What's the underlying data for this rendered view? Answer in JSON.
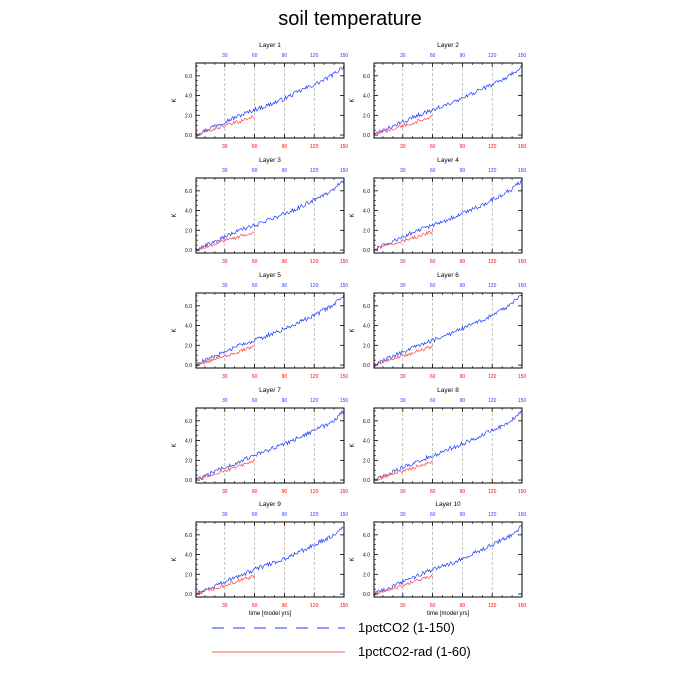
{
  "title": "soil temperature",
  "legend": {
    "items": [
      {
        "label": "1pctCO2 (1-150)",
        "color": "#1f3fff",
        "style": "dashed"
      },
      {
        "label": "1pctCO2-rad (1-60)",
        "color": "#ff5a5a",
        "style": "solid"
      }
    ]
  },
  "colors": {
    "series_main": "#1f3fff",
    "series_rad": "#ff4a4a",
    "bottom_ticks": "#ff0000",
    "top_ticks": "#1f3fff",
    "gridline": "#999999"
  },
  "chart_data": [
    {
      "type": "line",
      "title": "Layer 1",
      "ylabel": "K",
      "xlabel": "",
      "xlim": [
        1,
        150
      ],
      "ylim": [
        -0.3,
        7.3
      ],
      "yticks": [
        "0.0",
        "2.0",
        "4.0",
        "6.0"
      ],
      "xticks_top": [
        "30",
        "60",
        "90",
        "120",
        "150"
      ],
      "xticks_bottom": [
        "30",
        "60",
        "90",
        "120",
        "150"
      ],
      "series": [
        {
          "name": "1pctCO2 (1-150)",
          "x_range": [
            1,
            150
          ],
          "values": [
            0.0,
            0.5,
            1.0,
            1.4,
            1.8,
            2.2,
            2.6,
            2.9,
            3.3,
            3.7,
            4.2,
            4.7,
            5.1,
            5.6,
            6.2,
            7.0
          ]
        },
        {
          "name": "1pctCO2-rad (1-60)",
          "x_range": [
            1,
            60
          ],
          "values": [
            0.0,
            0.4,
            0.8,
            1.1,
            1.5,
            1.9
          ]
        }
      ]
    },
    {
      "type": "line",
      "title": "Layer 2",
      "ylabel": "K",
      "xlabel": "",
      "xlim": [
        1,
        150
      ],
      "ylim": [
        -0.3,
        7.3
      ],
      "yticks": [
        "0.0",
        "2.0",
        "4.0",
        "6.0"
      ],
      "xticks_top": [
        "30",
        "60",
        "90",
        "120",
        "150"
      ],
      "xticks_bottom": [
        "30",
        "60",
        "90",
        "120",
        "150"
      ],
      "series": [
        {
          "name": "1pctCO2 (1-150)",
          "x_range": [
            1,
            150
          ],
          "values": [
            0.0,
            0.5,
            0.9,
            1.4,
            1.8,
            2.2,
            2.6,
            2.9,
            3.3,
            3.7,
            4.2,
            4.7,
            5.1,
            5.6,
            6.2,
            7.0
          ]
        },
        {
          "name": "1pctCO2-rad (1-60)",
          "x_range": [
            1,
            60
          ],
          "values": [
            0.0,
            0.4,
            0.8,
            1.1,
            1.5,
            1.9
          ]
        }
      ]
    },
    {
      "type": "line",
      "title": "Layer 3",
      "ylabel": "K",
      "xlabel": "",
      "xlim": [
        1,
        150
      ],
      "ylim": [
        -0.3,
        7.3
      ],
      "yticks": [
        "0.0",
        "2.0",
        "4.0",
        "6.0"
      ],
      "xticks_top": [
        "30",
        "60",
        "90",
        "120",
        "150"
      ],
      "xticks_bottom": [
        "30",
        "60",
        "90",
        "120",
        "150"
      ],
      "series": [
        {
          "name": "1pctCO2 (1-150)",
          "x_range": [
            1,
            150
          ],
          "values": [
            0.0,
            0.5,
            0.9,
            1.4,
            1.8,
            2.2,
            2.5,
            2.9,
            3.3,
            3.7,
            4.1,
            4.6,
            5.1,
            5.6,
            6.2,
            7.1
          ]
        },
        {
          "name": "1pctCO2-rad (1-60)",
          "x_range": [
            1,
            60
          ],
          "values": [
            0.0,
            0.4,
            0.8,
            1.1,
            1.5,
            1.9
          ]
        }
      ]
    },
    {
      "type": "line",
      "title": "Layer 4",
      "ylabel": "K",
      "xlabel": "",
      "xlim": [
        1,
        150
      ],
      "ylim": [
        -0.3,
        7.3
      ],
      "yticks": [
        "0.0",
        "2.0",
        "4.0",
        "6.0"
      ],
      "xticks_top": [
        "30",
        "60",
        "90",
        "120",
        "150"
      ],
      "xticks_bottom": [
        "30",
        "60",
        "90",
        "120",
        "150"
      ],
      "series": [
        {
          "name": "1pctCO2 (1-150)",
          "x_range": [
            1,
            150
          ],
          "values": [
            0.0,
            0.5,
            0.9,
            1.4,
            1.8,
            2.2,
            2.5,
            2.9,
            3.3,
            3.7,
            4.1,
            4.6,
            5.1,
            5.6,
            6.2,
            7.1
          ]
        },
        {
          "name": "1pctCO2-rad (1-60)",
          "x_range": [
            1,
            60
          ],
          "values": [
            0.0,
            0.4,
            0.8,
            1.1,
            1.5,
            1.9
          ]
        }
      ]
    },
    {
      "type": "line",
      "title": "Layer 5",
      "ylabel": "K",
      "xlabel": "",
      "xlim": [
        1,
        150
      ],
      "ylim": [
        -0.3,
        7.3
      ],
      "yticks": [
        "0.0",
        "2.0",
        "4.0",
        "6.0"
      ],
      "xticks_top": [
        "30",
        "60",
        "90",
        "120",
        "150"
      ],
      "xticks_bottom": [
        "30",
        "60",
        "90",
        "120",
        "150"
      ],
      "series": [
        {
          "name": "1pctCO2 (1-150)",
          "x_range": [
            1,
            150
          ],
          "values": [
            0.0,
            0.5,
            0.9,
            1.4,
            1.8,
            2.2,
            2.5,
            2.9,
            3.3,
            3.7,
            4.1,
            4.6,
            5.0,
            5.6,
            6.2,
            7.1
          ]
        },
        {
          "name": "1pctCO2-rad (1-60)",
          "x_range": [
            1,
            60
          ],
          "values": [
            0.0,
            0.4,
            0.8,
            1.1,
            1.5,
            1.9
          ]
        }
      ]
    },
    {
      "type": "line",
      "title": "Layer 6",
      "ylabel": "K",
      "xlabel": "",
      "xlim": [
        1,
        150
      ],
      "ylim": [
        -0.3,
        7.3
      ],
      "yticks": [
        "0.0",
        "2.0",
        "4.0",
        "6.0"
      ],
      "xticks_top": [
        "30",
        "60",
        "90",
        "120",
        "150"
      ],
      "xticks_bottom": [
        "30",
        "60",
        "90",
        "120",
        "150"
      ],
      "series": [
        {
          "name": "1pctCO2 (1-150)",
          "x_range": [
            1,
            150
          ],
          "values": [
            0.0,
            0.5,
            0.9,
            1.4,
            1.8,
            2.2,
            2.5,
            2.9,
            3.3,
            3.7,
            4.1,
            4.6,
            5.0,
            5.6,
            6.2,
            7.1
          ]
        },
        {
          "name": "1pctCO2-rad (1-60)",
          "x_range": [
            1,
            60
          ],
          "values": [
            0.0,
            0.4,
            0.8,
            1.1,
            1.5,
            1.9
          ]
        }
      ]
    },
    {
      "type": "line",
      "title": "Layer 7",
      "ylabel": "K",
      "xlabel": "",
      "xlim": [
        1,
        150
      ],
      "ylim": [
        -0.3,
        7.3
      ],
      "yticks": [
        "0.0",
        "2.0",
        "4.0",
        "6.0"
      ],
      "xticks_top": [
        "30",
        "60",
        "90",
        "120",
        "150"
      ],
      "xticks_bottom": [
        "30",
        "60",
        "90",
        "120",
        "150"
      ],
      "series": [
        {
          "name": "1pctCO2 (1-150)",
          "x_range": [
            1,
            150
          ],
          "values": [
            0.0,
            0.4,
            0.9,
            1.3,
            1.7,
            2.1,
            2.5,
            2.9,
            3.3,
            3.7,
            4.1,
            4.6,
            5.0,
            5.5,
            6.1,
            7.0
          ]
        },
        {
          "name": "1pctCO2-rad (1-60)",
          "x_range": [
            1,
            60
          ],
          "values": [
            0.0,
            0.4,
            0.8,
            1.1,
            1.5,
            1.9
          ]
        }
      ]
    },
    {
      "type": "line",
      "title": "Layer 8",
      "ylabel": "K",
      "xlabel": "",
      "xlim": [
        1,
        150
      ],
      "ylim": [
        -0.3,
        7.3
      ],
      "yticks": [
        "0.0",
        "2.0",
        "4.0",
        "6.0"
      ],
      "xticks_top": [
        "30",
        "60",
        "90",
        "120",
        "150"
      ],
      "xticks_bottom": [
        "30",
        "60",
        "90",
        "120",
        "150"
      ],
      "series": [
        {
          "name": "1pctCO2 (1-150)",
          "x_range": [
            1,
            150
          ],
          "values": [
            0.0,
            0.4,
            0.9,
            1.3,
            1.7,
            2.1,
            2.5,
            2.9,
            3.3,
            3.7,
            4.1,
            4.6,
            5.0,
            5.5,
            6.1,
            7.0
          ]
        },
        {
          "name": "1pctCO2-rad (1-60)",
          "x_range": [
            1,
            60
          ],
          "values": [
            0.0,
            0.4,
            0.8,
            1.1,
            1.5,
            1.9
          ]
        }
      ]
    },
    {
      "type": "line",
      "title": "Layer 9",
      "ylabel": "K",
      "xlabel": "time [model yrs]",
      "xlim": [
        1,
        150
      ],
      "ylim": [
        -0.3,
        7.3
      ],
      "yticks": [
        "0.0",
        "2.0",
        "4.0",
        "6.0"
      ],
      "xticks_top": [
        "30",
        "60",
        "90",
        "120",
        "150"
      ],
      "xticks_bottom": [
        "30",
        "60",
        "90",
        "120",
        "150"
      ],
      "series": [
        {
          "name": "1pctCO2 (1-150)",
          "x_range": [
            1,
            150
          ],
          "values": [
            0.0,
            0.4,
            0.8,
            1.3,
            1.7,
            2.1,
            2.5,
            2.9,
            3.2,
            3.6,
            4.1,
            4.5,
            5.0,
            5.5,
            6.0,
            6.9
          ]
        },
        {
          "name": "1pctCO2-rad (1-60)",
          "x_range": [
            1,
            60
          ],
          "values": [
            0.0,
            0.4,
            0.7,
            1.1,
            1.5,
            1.8
          ]
        }
      ]
    },
    {
      "type": "line",
      "title": "Layer 10",
      "ylabel": "K",
      "xlabel": "time [model yrs]",
      "xlim": [
        1,
        150
      ],
      "ylim": [
        -0.3,
        7.3
      ],
      "yticks": [
        "0.0",
        "2.0",
        "4.0",
        "6.0"
      ],
      "xticks_top": [
        "30",
        "60",
        "90",
        "120",
        "150"
      ],
      "xticks_bottom": [
        "30",
        "60",
        "90",
        "120",
        "150"
      ],
      "series": [
        {
          "name": "1pctCO2 (1-150)",
          "x_range": [
            1,
            150
          ],
          "values": [
            0.0,
            0.4,
            0.8,
            1.3,
            1.7,
            2.1,
            2.5,
            2.9,
            3.2,
            3.6,
            4.1,
            4.5,
            5.0,
            5.5,
            6.0,
            6.9
          ]
        },
        {
          "name": "1pctCO2-rad (1-60)",
          "x_range": [
            1,
            60
          ],
          "values": [
            0.0,
            0.4,
            0.7,
            1.1,
            1.5,
            1.8
          ]
        }
      ]
    }
  ]
}
